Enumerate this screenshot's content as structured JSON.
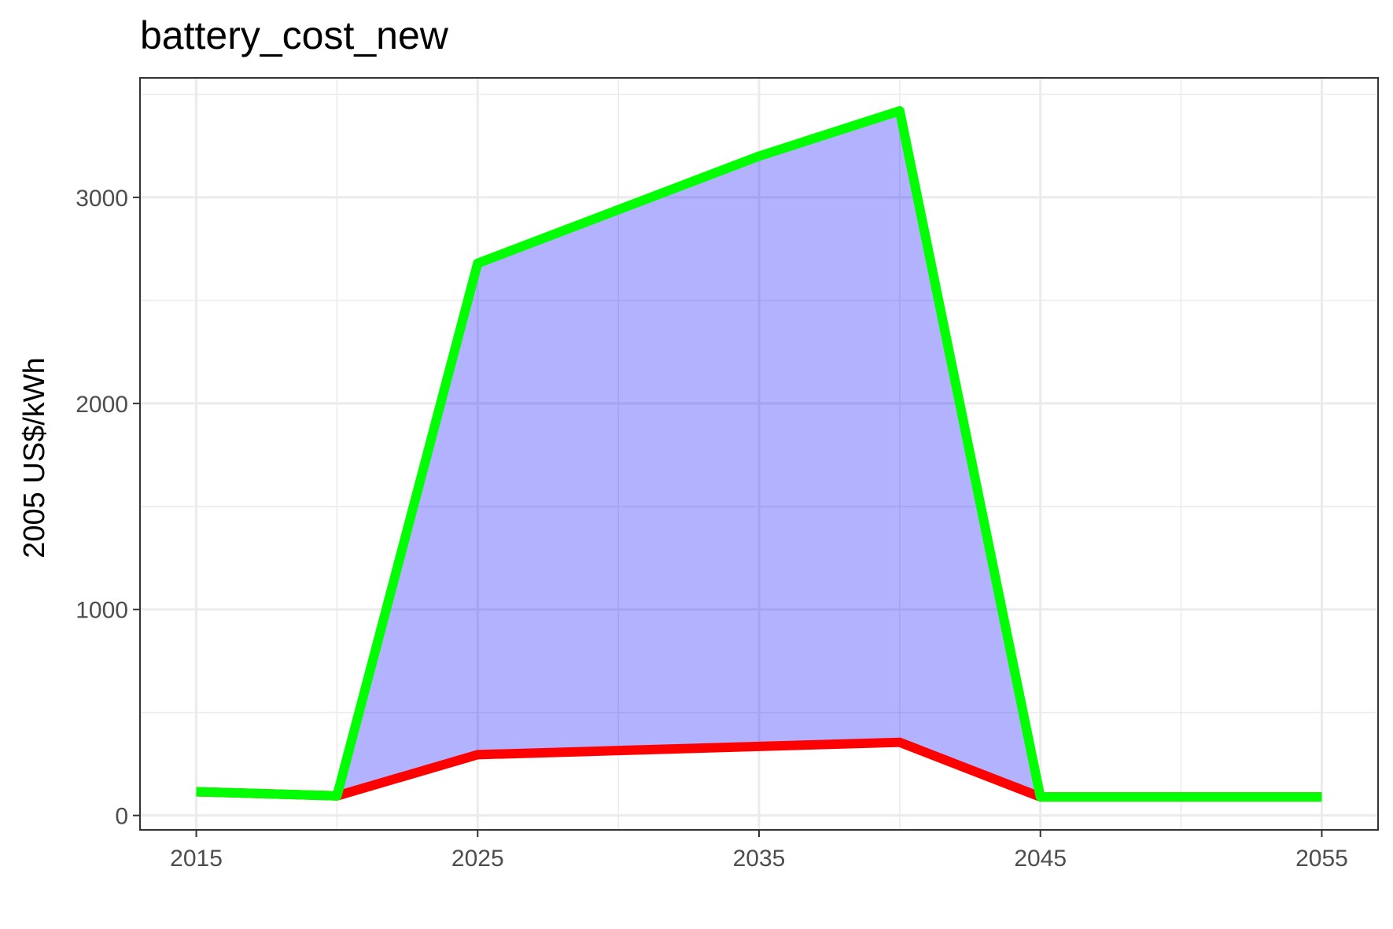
{
  "chart_data": {
    "type": "area",
    "title": "battery_cost_new",
    "xlabel": "",
    "ylabel": "2005 US$/kWh",
    "x": [
      2015,
      2020,
      2025,
      2030,
      2035,
      2040,
      2045,
      2050,
      2055
    ],
    "xlim": [
      2013,
      2057
    ],
    "ylim": [
      -70,
      3580
    ],
    "x_ticks": [
      2015,
      2025,
      2035,
      2045,
      2055
    ],
    "x_tick_labels": [
      "2015",
      "2025",
      "2035",
      "2045",
      "2055"
    ],
    "x_minor_ticks": [
      2020,
      2030,
      2040,
      2050
    ],
    "y_ticks": [
      0,
      1000,
      2000,
      3000
    ],
    "y_tick_labels": [
      "0",
      "1000",
      "2000",
      "3000"
    ],
    "y_minor_ticks": [
      500,
      1500,
      2500,
      3500
    ],
    "grid": true,
    "legend": "none",
    "ribbon": {
      "lower": [
        115,
        95,
        295,
        315,
        335,
        355,
        90,
        90,
        90
      ],
      "upper": [
        115,
        95,
        2680,
        2940,
        3200,
        3420,
        90,
        90,
        90
      ],
      "color": "#0000ff",
      "opacity": 0.3
    },
    "series": [
      {
        "values": [
          115,
          95,
          295,
          315,
          335,
          355,
          90,
          90,
          90
        ],
        "color": "#ff0000"
      },
      {
        "values": [
          115,
          95,
          2680,
          2940,
          3200,
          3420,
          90,
          90,
          90
        ],
        "color": "#00ff00"
      }
    ]
  }
}
